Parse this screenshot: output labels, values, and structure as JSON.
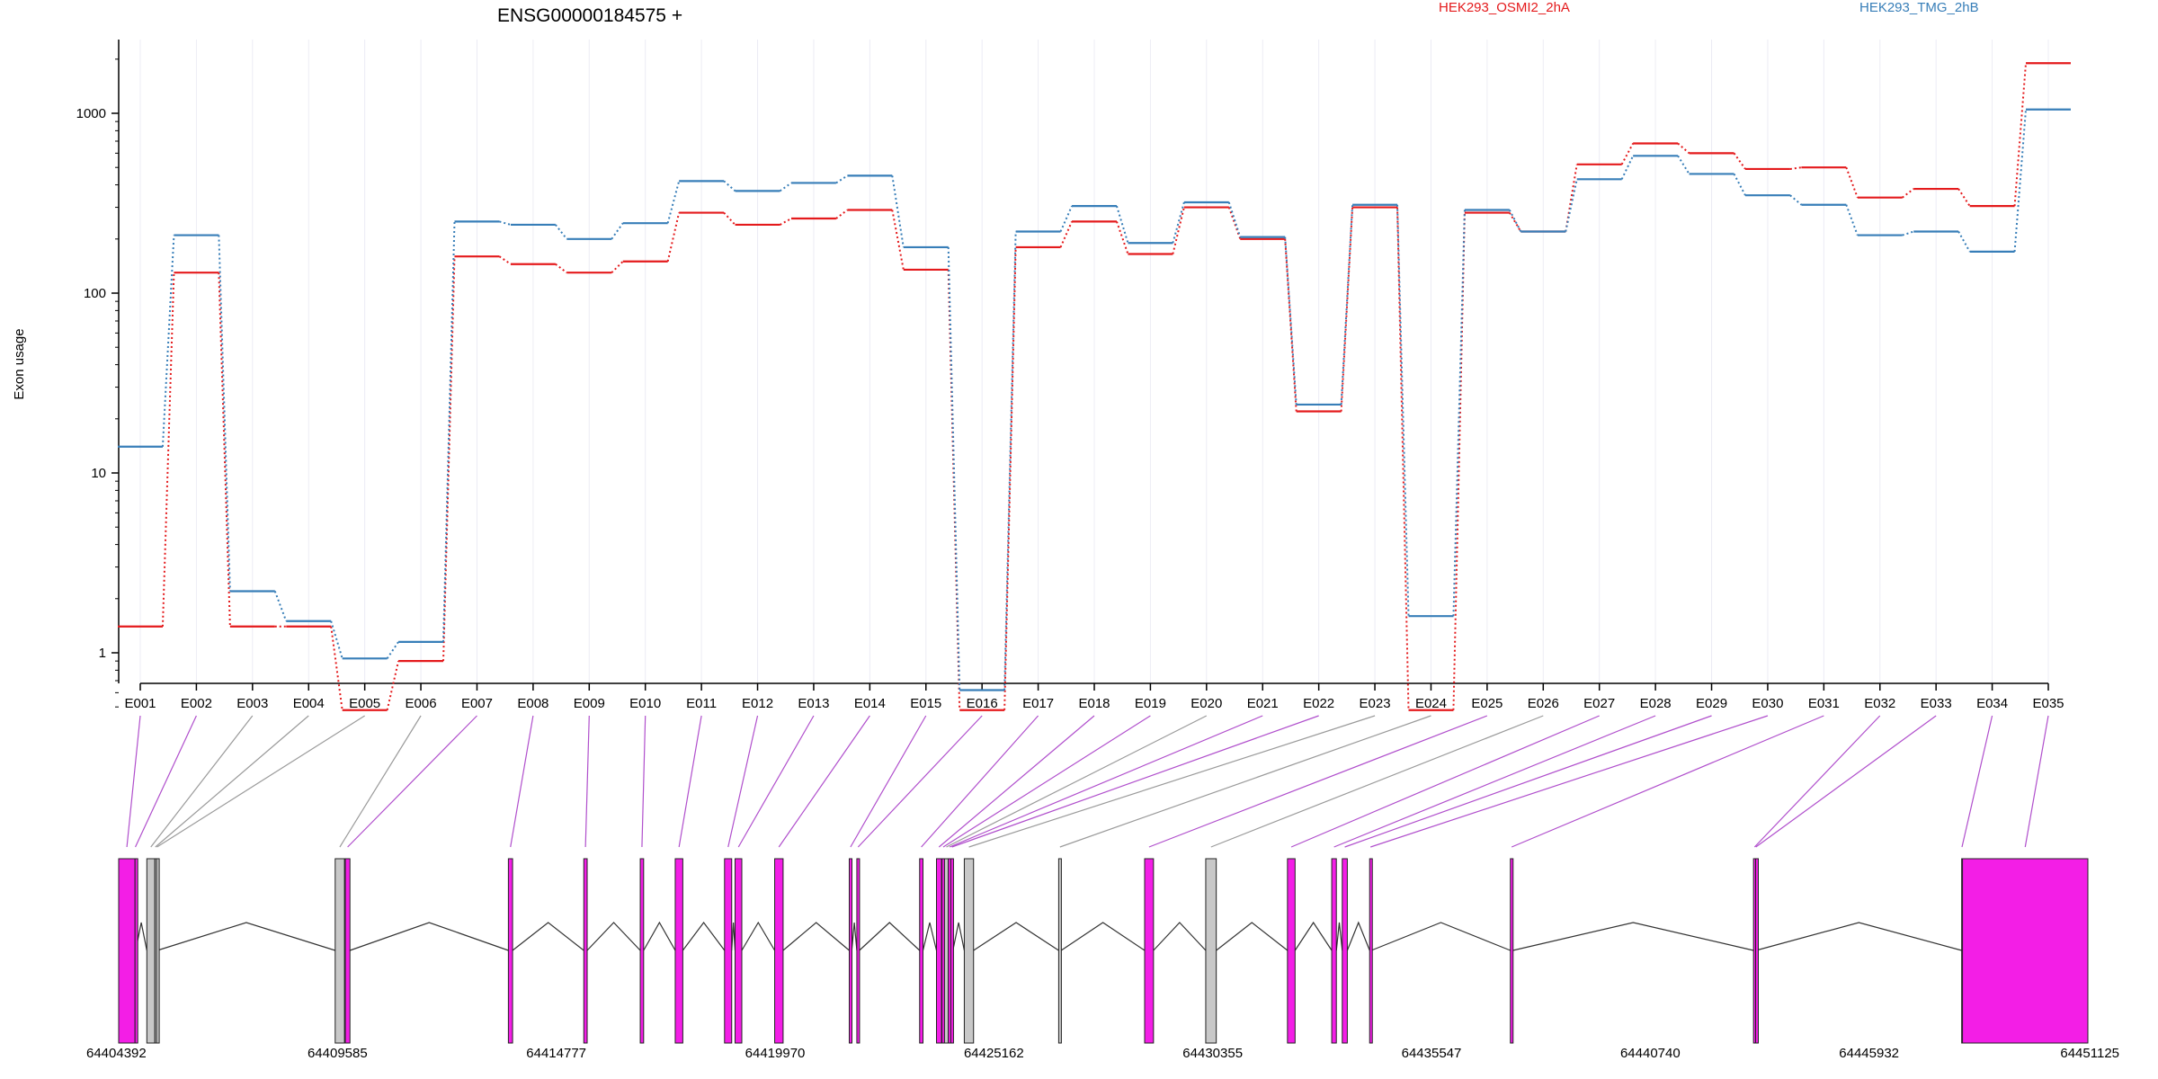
{
  "chart_data": {
    "type": "line",
    "title": "ENSG00000184575 +",
    "xlabel": "",
    "ylabel": "Exon usage",
    "y_scale": "log",
    "ylim": [
      0.5,
      2500
    ],
    "y_ticks": [
      1,
      10,
      100,
      1000
    ],
    "y_tick_labels": [
      "1",
      "10",
      "100",
      "1000"
    ],
    "grid": "vertical",
    "legend_placement": "top",
    "categories": [
      "E001",
      "E002",
      "E003",
      "E004",
      "E005",
      "E006",
      "E007",
      "E008",
      "E009",
      "E010",
      "E011",
      "E012",
      "E013",
      "E014",
      "E015",
      "E016",
      "E017",
      "E018",
      "E019",
      "E020",
      "E021",
      "E022",
      "E023",
      "E024",
      "E025",
      "E026",
      "E027",
      "E028",
      "E029",
      "E030",
      "E031",
      "E032",
      "E033",
      "E034",
      "E035"
    ],
    "series": [
      {
        "name": "HEK293_OSMI2_2hA",
        "color": "#e41a1c",
        "values": [
          1.4,
          130,
          1.4,
          1.4,
          0.48,
          0.9,
          160,
          145,
          130,
          150,
          280,
          240,
          260,
          290,
          135,
          0.48,
          180,
          250,
          165,
          300,
          200,
          22,
          300,
          0.48,
          280,
          220,
          520,
          680,
          600,
          490,
          500,
          340,
          380,
          305,
          1900
        ]
      },
      {
        "name": "HEK293_TMG_2hB",
        "color": "#377eb8",
        "values": [
          14,
          210,
          2.2,
          1.5,
          0.93,
          1.15,
          250,
          240,
          200,
          245,
          420,
          370,
          410,
          450,
          180,
          0.62,
          220,
          305,
          190,
          320,
          205,
          24,
          310,
          1.6,
          290,
          220,
          430,
          580,
          460,
          350,
          310,
          210,
          220,
          170,
          1050
        ]
      }
    ],
    "gene_model": {
      "coordinate_labels": [
        "64404392",
        "64409585",
        "64414777",
        "64419970",
        "64425162",
        "64430355",
        "64435547",
        "64440740",
        "64445932",
        "64451125"
      ],
      "coord_start": 64404392,
      "coord_end": 64451125,
      "exons": [
        {
          "start": 64404392,
          "end": 64404780,
          "status": "significant",
          "exon_id": "E001"
        },
        {
          "start": 64404780,
          "end": 64404795,
          "status": "significant",
          "exon_id": "E002"
        },
        {
          "start": 64405060,
          "end": 64405250,
          "status": "not_tested",
          "exon_id": "E003"
        },
        {
          "start": 64405250,
          "end": 64405275,
          "status": "not_tested",
          "exon_id": "E004"
        },
        {
          "start": 64405290,
          "end": 64405310,
          "status": "not_tested",
          "exon_id": "E005"
        },
        {
          "start": 64409530,
          "end": 64409750,
          "status": "not_tested",
          "exon_id": "E006"
        },
        {
          "start": 64409770,
          "end": 64409880,
          "status": "significant",
          "exon_id": "E007"
        },
        {
          "start": 64413640,
          "end": 64413740,
          "status": "significant",
          "exon_id": "E008"
        },
        {
          "start": 64415430,
          "end": 64415510,
          "status": "significant",
          "exon_id": "E009"
        },
        {
          "start": 64416770,
          "end": 64416850,
          "status": "significant",
          "exon_id": "E010"
        },
        {
          "start": 64417600,
          "end": 64417780,
          "status": "significant",
          "exon_id": "E011"
        },
        {
          "start": 64418770,
          "end": 64418940,
          "status": "significant",
          "exon_id": "E012"
        },
        {
          "start": 64419020,
          "end": 64419180,
          "status": "significant",
          "exon_id": "E013"
        },
        {
          "start": 64419960,
          "end": 64420160,
          "status": "significant",
          "exon_id": "E014"
        },
        {
          "start": 64421730,
          "end": 64421790,
          "status": "significant",
          "exon_id": "E015"
        },
        {
          "start": 64421910,
          "end": 64421970,
          "status": "significant",
          "exon_id": "E016"
        },
        {
          "start": 64423400,
          "end": 64423480,
          "status": "significant",
          "exon_id": "E017"
        },
        {
          "start": 64423800,
          "end": 64423920,
          "status": "significant",
          "exon_id": "E018"
        },
        {
          "start": 64423930,
          "end": 64423990,
          "status": "significant",
          "exon_id": "E019"
        },
        {
          "start": 64423990,
          "end": 64424080,
          "status": "not_tested",
          "exon_id": "E020"
        },
        {
          "start": 64424080,
          "end": 64424140,
          "status": "significant",
          "exon_id": "E021"
        },
        {
          "start": 64424140,
          "end": 64424190,
          "status": "significant",
          "exon_id": "E022"
        },
        {
          "start": 64424460,
          "end": 64424680,
          "status": "not_tested",
          "exon_id": "E023"
        },
        {
          "start": 64426700,
          "end": 64426760,
          "status": "not_tested",
          "exon_id": "E024"
        },
        {
          "start": 64428740,
          "end": 64428950,
          "status": "significant",
          "exon_id": "E025"
        },
        {
          "start": 64430190,
          "end": 64430440,
          "status": "not_tested",
          "exon_id": "E026"
        },
        {
          "start": 64432130,
          "end": 64432310,
          "status": "significant",
          "exon_id": "E027"
        },
        {
          "start": 64433180,
          "end": 64433290,
          "status": "significant",
          "exon_id": "E028"
        },
        {
          "start": 64433430,
          "end": 64433550,
          "status": "significant",
          "exon_id": "E029"
        },
        {
          "start": 64434080,
          "end": 64434120,
          "status": "significant",
          "exon_id": "E030"
        },
        {
          "start": 64437420,
          "end": 64437480,
          "status": "significant",
          "exon_id": "E031"
        },
        {
          "start": 64443190,
          "end": 64443240,
          "status": "significant",
          "exon_id": "E032"
        },
        {
          "start": 64443240,
          "end": 64443250,
          "status": "significant",
          "exon_id": "E033"
        },
        {
          "start": 64448130,
          "end": 64448145,
          "status": "significant",
          "exon_id": "E034"
        },
        {
          "start": 64448150,
          "end": 64451125,
          "status": "significant",
          "exon_id": "E035"
        }
      ]
    }
  },
  "colors": {
    "significant_exon": "#f31ee6",
    "not_tested_exon": "#c8c8c8",
    "significant_link": "#b04fcc",
    "not_tested_link": "#9a9a9a",
    "grid": "#ececf4",
    "intron": "#333333"
  }
}
